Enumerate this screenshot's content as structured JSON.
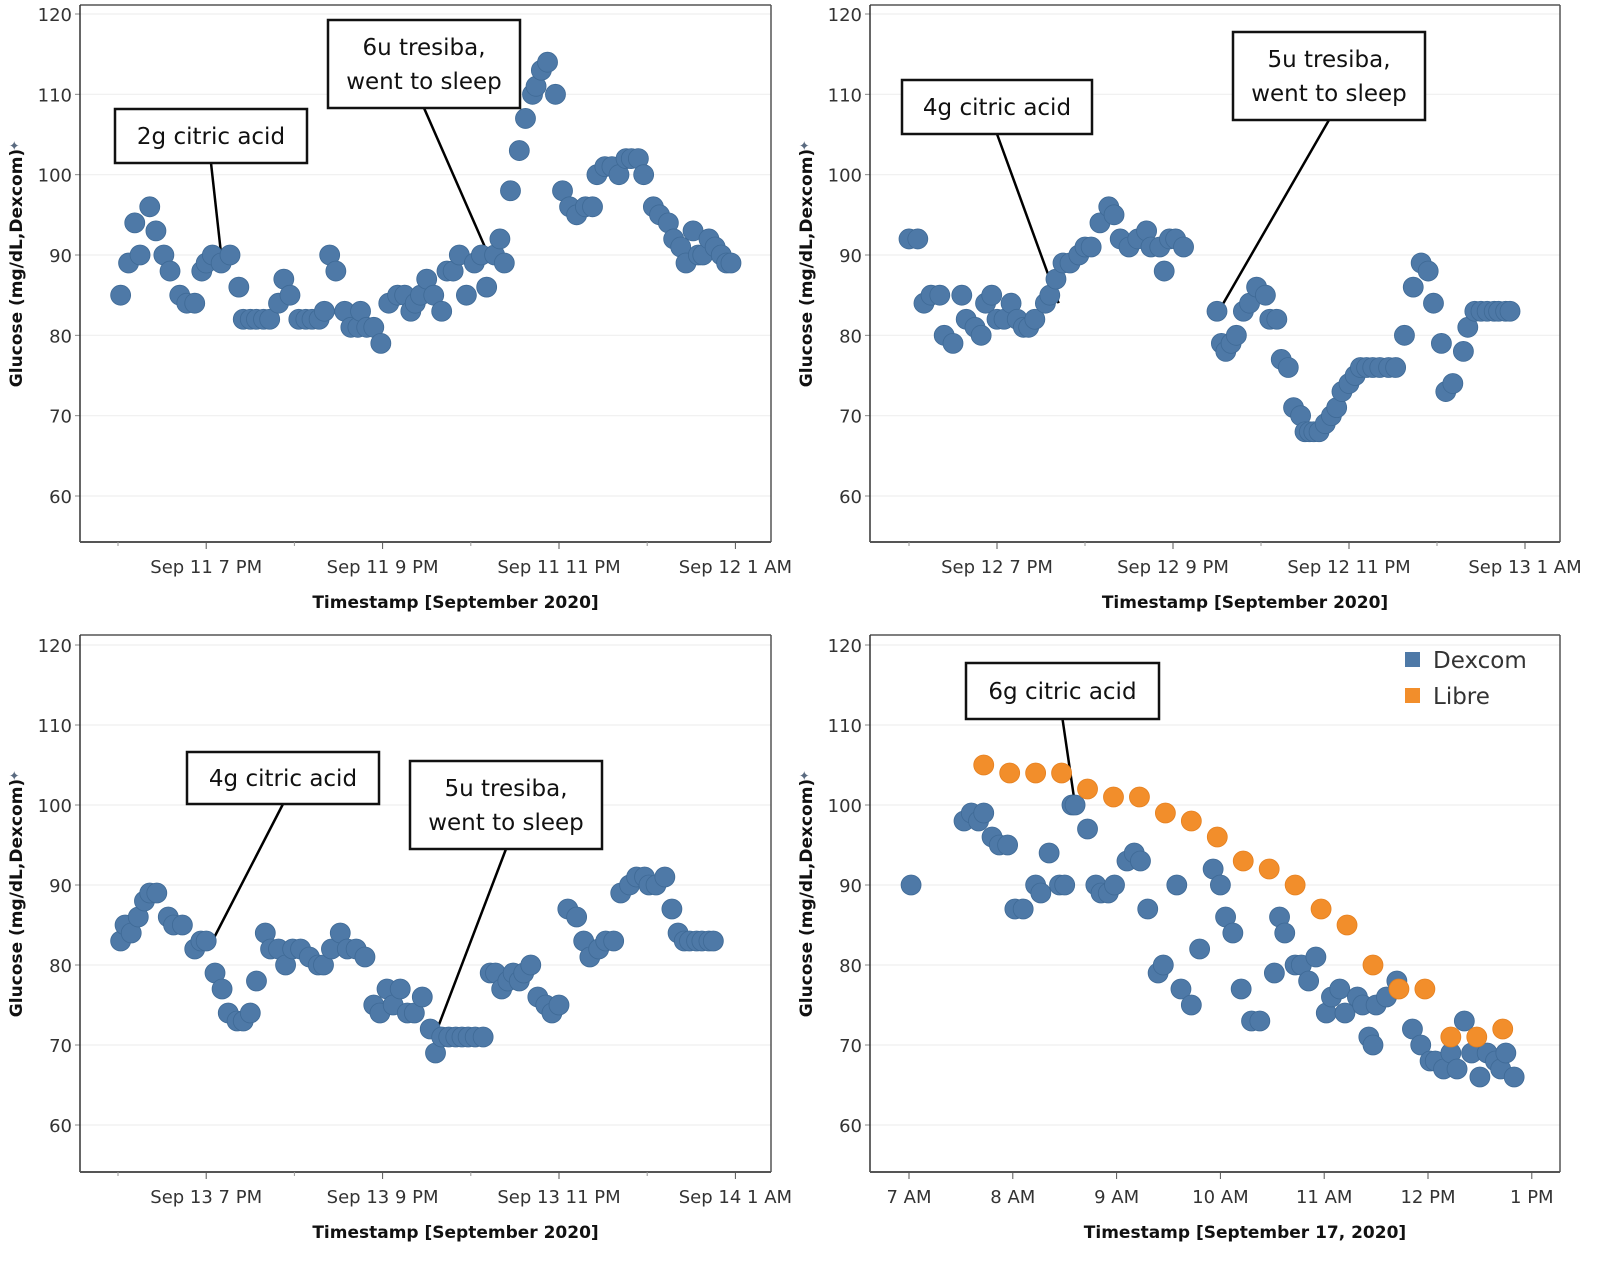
{
  "chart_data": [
    {
      "type": "scatter",
      "title": "",
      "xlabel": "Timestamp [September 2020]",
      "ylabel": "Glucose (mg/dL,Dexcom)",
      "ylim": [
        55,
        121
      ],
      "yticks": [
        60,
        70,
        80,
        90,
        100,
        110,
        120
      ],
      "x_unit": "hours after Sep 11 6 PM",
      "xlim": [
        -0.4,
        7.4
      ],
      "xticks": [
        {
          "x": 1,
          "label": "Sep 11 7 PM"
        },
        {
          "x": 3,
          "label": "Sep 11 9 PM"
        },
        {
          "x": 5,
          "label": "Sep 11 11 PM"
        },
        {
          "x": 7,
          "label": "Sep 12 1 AM"
        }
      ],
      "minor_ticks": [
        0,
        2,
        4,
        6
      ],
      "grid": true,
      "legend": null,
      "annotations": [
        {
          "text": "2g citric acid",
          "x": 1.17,
          "y": 90
        },
        {
          "text": "6u tresiba,\nwent to sleep",
          "x": 4.2,
          "y": 90
        }
      ],
      "series": [
        {
          "name": "Dexcom",
          "color": "#4e79a7",
          "x": [
            0.03,
            0.12,
            0.19,
            0.25,
            0.36,
            0.43,
            0.52,
            0.59,
            0.7,
            0.78,
            0.87,
            0.95,
            1.0,
            1.07,
            1.17,
            1.27,
            1.37,
            1.42,
            1.5,
            1.57,
            1.65,
            1.72,
            1.82,
            1.88,
            1.95,
            2.05,
            2.13,
            2.2,
            2.28,
            2.34,
            2.4,
            2.47,
            2.57,
            2.64,
            2.72,
            2.75,
            2.82,
            2.9,
            2.98,
            3.07,
            3.17,
            3.25,
            3.32,
            3.37,
            3.43,
            3.5,
            3.58,
            3.67,
            3.73,
            3.8,
            3.87,
            3.95,
            4.04,
            4.12,
            4.18,
            4.27,
            4.33,
            4.38,
            4.45,
            4.55,
            4.62,
            4.7,
            4.74,
            4.8,
            4.87,
            4.96,
            5.04,
            5.12,
            5.2,
            5.3,
            5.38,
            5.43,
            5.52,
            5.6,
            5.68,
            5.76,
            5.82,
            5.9,
            5.96,
            6.07,
            6.14,
            6.24,
            6.3,
            6.38,
            6.44,
            6.52,
            6.58,
            6.63,
            6.7,
            6.77,
            6.84,
            6.9,
            6.95
          ],
          "y": [
            85,
            89,
            94,
            90,
            96,
            93,
            90,
            88,
            85,
            84,
            84,
            88,
            89,
            90,
            89,
            90,
            86,
            82,
            82,
            82,
            82,
            82,
            84,
            87,
            85,
            82,
            82,
            82,
            82,
            83,
            90,
            88,
            83,
            81,
            81,
            83,
            81,
            81,
            79,
            84,
            85,
            85,
            83,
            84,
            85,
            87,
            85,
            83,
            88,
            88,
            90,
            85,
            89,
            90,
            86,
            90,
            92,
            89,
            98,
            103,
            107,
            110,
            111,
            113,
            114,
            110,
            98,
            96,
            95,
            96,
            96,
            100,
            101,
            101,
            100,
            102,
            102,
            102,
            100,
            96,
            95,
            94,
            92,
            91,
            89,
            93,
            90,
            90,
            92,
            91,
            90,
            89,
            89
          ]
        }
      ]
    },
    {
      "type": "scatter",
      "title": "",
      "xlabel": "Timestamp [September 2020]",
      "ylabel": "Glucose (mg/dL,Dexcom)",
      "ylim": [
        55,
        121
      ],
      "yticks": [
        60,
        70,
        80,
        90,
        100,
        110,
        120
      ],
      "x_unit": "hours after Sep 12 6 PM",
      "xlim": [
        -0.4,
        7.4
      ],
      "xticks": [
        {
          "x": 1,
          "label": "Sep 12 7 PM"
        },
        {
          "x": 3,
          "label": "Sep 12 9 PM"
        },
        {
          "x": 5,
          "label": "Sep 12 11 PM"
        },
        {
          "x": 7,
          "label": "Sep 13 1 AM"
        }
      ],
      "minor_ticks": [
        0,
        2,
        4,
        6
      ],
      "grid": true,
      "legend": null,
      "annotations": [
        {
          "text": "4g citric acid",
          "x": 1.7,
          "y": 84
        },
        {
          "text": "5u tresiba,\nwent to sleep",
          "x": 3.52,
          "y": 83
        }
      ],
      "series": [
        {
          "name": "Dexcom",
          "color": "#4e79a7",
          "x": [
            0.0,
            0.1,
            0.17,
            0.25,
            0.35,
            0.4,
            0.5,
            0.6,
            0.65,
            0.75,
            0.82,
            0.87,
            0.94,
            1.0,
            1.08,
            1.16,
            1.23,
            1.3,
            1.36,
            1.43,
            1.55,
            1.6,
            1.67,
            1.75,
            1.83,
            1.93,
            2.0,
            2.07,
            2.17,
            2.27,
            2.33,
            2.4,
            2.5,
            2.6,
            2.7,
            2.75,
            2.85,
            2.9,
            2.96,
            3.03,
            3.12,
            3.5,
            3.55,
            3.6,
            3.66,
            3.72,
            3.8,
            3.87,
            3.95,
            4.05,
            4.1,
            4.18,
            4.23,
            4.31,
            4.37,
            4.45,
            4.5,
            4.55,
            4.6,
            4.66,
            4.73,
            4.8,
            4.86,
            4.92,
            5.0,
            5.07,
            5.13,
            5.2,
            5.27,
            5.35,
            5.45,
            5.53,
            5.63,
            5.73,
            5.82,
            5.9,
            5.96,
            6.05,
            6.1,
            6.18,
            6.3,
            6.35,
            6.43,
            6.5,
            6.57,
            6.65,
            6.7,
            6.78,
            6.83
          ],
          "y": [
            92,
            92,
            84,
            85,
            85,
            80,
            79,
            85,
            82,
            81,
            80,
            84,
            85,
            82,
            82,
            84,
            82,
            81,
            81,
            82,
            84,
            85,
            87,
            89,
            89,
            90,
            91,
            91,
            94,
            96,
            95,
            92,
            91,
            92,
            93,
            91,
            91,
            88,
            92,
            92,
            91,
            83,
            79,
            78,
            79,
            80,
            83,
            84,
            86,
            85,
            82,
            82,
            77,
            76,
            71,
            70,
            68,
            68,
            68,
            68,
            69,
            70,
            71,
            73,
            74,
            75,
            76,
            76,
            76,
            76,
            76,
            76,
            80,
            86,
            89,
            88,
            84,
            79,
            73,
            74,
            78,
            81,
            83,
            83,
            83,
            83,
            83,
            83,
            83
          ]
        }
      ]
    },
    {
      "type": "scatter",
      "title": "",
      "xlabel": "Timestamp [September 2020]",
      "ylabel": "Glucose (mg/dL,Dexcom)",
      "ylim": [
        55,
        121
      ],
      "yticks": [
        60,
        70,
        80,
        90,
        100,
        110,
        120
      ],
      "x_unit": "hours after Sep 13 6 PM",
      "xlim": [
        -0.4,
        7.4
      ],
      "xticks": [
        {
          "x": 1,
          "label": "Sep 13 7 PM"
        },
        {
          "x": 3,
          "label": "Sep 13 9 PM"
        },
        {
          "x": 5,
          "label": "Sep 13 11 PM"
        },
        {
          "x": 7,
          "label": "Sep 14 1 AM"
        }
      ],
      "minor_ticks": [
        0,
        2,
        4,
        6
      ],
      "grid": true,
      "legend": null,
      "annotations": [
        {
          "text": "4g citric acid",
          "x": 1.07,
          "y": 83
        },
        {
          "text": "5u tresiba,\nwent to sleep",
          "x": 3.62,
          "y": 72
        }
      ],
      "series": [
        {
          "name": "Dexcom",
          "color": "#4e79a7",
          "x": [
            0.03,
            0.08,
            0.15,
            0.23,
            0.3,
            0.36,
            0.44,
            0.57,
            0.63,
            0.73,
            0.87,
            0.94,
            1.0,
            1.1,
            1.18,
            1.25,
            1.35,
            1.42,
            1.5,
            1.57,
            1.67,
            1.73,
            1.82,
            1.9,
            1.98,
            2.07,
            2.17,
            2.27,
            2.33,
            2.42,
            2.52,
            2.6,
            2.7,
            2.8,
            2.9,
            2.97,
            3.05,
            3.12,
            3.2,
            3.28,
            3.36,
            3.45,
            3.54,
            3.6,
            3.67,
            3.75,
            3.83,
            3.9,
            3.97,
            4.05,
            4.14,
            4.22,
            4.28,
            4.35,
            4.42,
            4.48,
            4.55,
            4.6,
            4.68,
            4.76,
            4.85,
            4.92,
            5.0,
            5.1,
            5.2,
            5.28,
            5.35,
            5.45,
            5.53,
            5.62,
            5.7,
            5.8,
            5.88,
            5.97,
            6.02,
            6.1,
            6.2,
            6.28,
            6.35,
            6.42,
            6.48,
            6.56,
            6.62,
            6.7,
            6.75
          ],
          "y": [
            83,
            85,
            84,
            86,
            88,
            89,
            89,
            86,
            85,
            85,
            82,
            83,
            83,
            79,
            77,
            74,
            73,
            73,
            74,
            78,
            84,
            82,
            82,
            80,
            82,
            82,
            81,
            80,
            80,
            82,
            84,
            82,
            82,
            81,
            75,
            74,
            77,
            75,
            77,
            74,
            74,
            76,
            72,
            69,
            71,
            71,
            71,
            71,
            71,
            71,
            71,
            79,
            79,
            77,
            78,
            79,
            78,
            79,
            80,
            76,
            75,
            74,
            75,
            87,
            86,
            83,
            81,
            82,
            83,
            83,
            89,
            90,
            91,
            91,
            90,
            90,
            91,
            87,
            84,
            83,
            83,
            83,
            83,
            83,
            83
          ]
        }
      ]
    },
    {
      "type": "scatter",
      "title": "",
      "xlabel": "Timestamp [September 17, 2020]",
      "ylabel": "Glucose (mg/dL,Dexcom)",
      "ylim": [
        55,
        121
      ],
      "yticks": [
        60,
        70,
        80,
        90,
        100,
        110,
        120
      ],
      "x_unit": "hour of day",
      "xlim": [
        6.75,
        13.3
      ],
      "xticks": [
        {
          "x": 7,
          "label": "7 AM"
        },
        {
          "x": 8,
          "label": "8 AM"
        },
        {
          "x": 9,
          "label": "9 AM"
        },
        {
          "x": 10,
          "label": "10 AM"
        },
        {
          "x": 11,
          "label": "11 AM"
        },
        {
          "x": 12,
          "label": "12 PM"
        },
        {
          "x": 13,
          "label": "1 PM"
        }
      ],
      "grid": true,
      "legend": "top-right",
      "legend_entries": [
        {
          "label": "Dexcom",
          "color": "#4e79a7"
        },
        {
          "label": "Libre",
          "color": "#f28e2b"
        }
      ],
      "annotations": [
        {
          "text": "6g citric acid",
          "x": 8.6,
          "y": 100
        }
      ],
      "series": [
        {
          "name": "Dexcom",
          "color": "#4e79a7",
          "x": [
            7.02,
            7.53,
            7.6,
            7.67,
            7.72,
            7.8,
            7.87,
            7.95,
            8.02,
            8.1,
            8.22,
            8.27,
            8.35,
            8.45,
            8.5,
            8.57,
            8.6,
            8.72,
            8.8,
            8.85,
            8.92,
            8.98,
            9.1,
            9.17,
            9.23,
            9.3,
            9.4,
            9.45,
            9.58,
            9.62,
            9.72,
            9.8,
            9.93,
            10.0,
            10.05,
            10.12,
            10.2,
            10.3,
            10.38,
            10.52,
            10.57,
            10.62,
            10.72,
            10.78,
            10.85,
            10.92,
            11.02,
            11.07,
            11.15,
            11.2,
            11.32,
            11.37,
            11.43,
            11.47,
            11.5,
            11.6,
            11.7,
            11.85,
            11.93,
            12.02,
            12.07,
            12.15,
            12.22,
            12.28,
            12.35,
            12.42,
            12.5,
            12.57,
            12.65,
            12.7,
            12.75,
            12.83
          ],
          "y": [
            90,
            98,
            99,
            98,
            99,
            96,
            95,
            95,
            87,
            87,
            90,
            89,
            94,
            90,
            90,
            100,
            100,
            97,
            90,
            89,
            89,
            90,
            93,
            94,
            93,
            87,
            79,
            80,
            90,
            77,
            75,
            82,
            92,
            90,
            86,
            84,
            77,
            73,
            73,
            79,
            86,
            84,
            80,
            80,
            78,
            81,
            74,
            76,
            77,
            74,
            76,
            75,
            71,
            70,
            75,
            76,
            78,
            72,
            70,
            68,
            68,
            67,
            69,
            67,
            73,
            69,
            66,
            69,
            68,
            67,
            69,
            66
          ]
        },
        {
          "name": "Libre",
          "color": "#f28e2b",
          "x": [
            7.72,
            7.97,
            8.22,
            8.47,
            8.72,
            8.97,
            9.22,
            9.47,
            9.72,
            9.97,
            10.22,
            10.47,
            10.72,
            10.97,
            11.22,
            11.47,
            11.72,
            11.97,
            12.22,
            12.47,
            12.72
          ],
          "y": [
            105,
            104,
            104,
            104,
            102,
            101,
            101,
            99,
            98,
            96,
            93,
            92,
            90,
            87,
            85,
            80,
            77,
            77,
            71,
            71,
            72
          ]
        }
      ]
    }
  ]
}
